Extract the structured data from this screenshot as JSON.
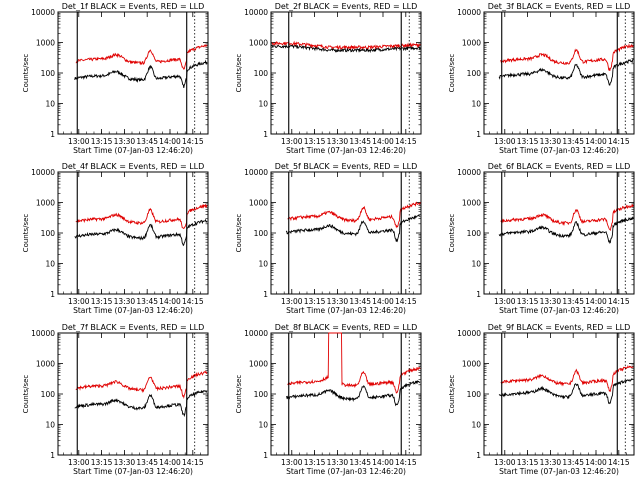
{
  "figure": {
    "x_axis_title": "Start Time (07-Jan-03 12:46:20)",
    "y_axis_title": "Counts/sec",
    "time_tick_labels": [
      "13:00",
      "13:15",
      "13:30",
      "13:45",
      "14:00",
      "14:15"
    ],
    "y_tick_labels": [
      "1",
      "10",
      "100",
      "1000",
      "10000"
    ],
    "series_colors": {
      "events": "#000000",
      "lld": "#e00000"
    }
  },
  "chart_data": [
    {
      "title": "Det_1f BLACK = Events, RED = LLD",
      "type": "line",
      "shape": "A",
      "y_scale": "log",
      "ylim": [
        1,
        10000
      ],
      "xlim": [
        "12:46:20",
        "14:25"
      ],
      "markers": [
        "12:59",
        "14:11"
      ],
      "series": [
        {
          "name": "Events",
          "color": "#000000",
          "base": 70
        },
        {
          "name": "LLD",
          "color": "#e00000",
          "base": 250
        }
      ]
    },
    {
      "title": "Det_2f BLACK = Events, RED = LLD",
      "type": "line",
      "shape": "B",
      "y_scale": "log",
      "ylim": [
        1,
        10000
      ],
      "xlim": [
        "12:46:20",
        "14:25"
      ],
      "markers": [
        "12:58",
        "14:12"
      ],
      "series": [
        {
          "name": "Events",
          "color": "#000000",
          "base": 560
        },
        {
          "name": "LLD",
          "color": "#e00000",
          "base": 700
        }
      ]
    },
    {
      "title": "Det_3f BLACK = Events, RED = LLD",
      "type": "line",
      "shape": "A",
      "y_scale": "log",
      "ylim": [
        1,
        10000
      ],
      "xlim": [
        "12:46:20",
        "14:25"
      ],
      "markers": [
        "12:58",
        "14:14"
      ],
      "series": [
        {
          "name": "Events",
          "color": "#000000",
          "base": 80
        },
        {
          "name": "LLD",
          "color": "#e00000",
          "base": 250
        }
      ]
    },
    {
      "title": "Det_4f BLACK = Events, RED = LLD",
      "type": "line",
      "shape": "A",
      "y_scale": "log",
      "ylim": [
        1,
        10000
      ],
      "xlim": [
        "12:46:20",
        "14:25"
      ],
      "markers": [
        "12:59",
        "14:11"
      ],
      "series": [
        {
          "name": "Events",
          "color": "#000000",
          "base": 80
        },
        {
          "name": "LLD",
          "color": "#e00000",
          "base": 250
        }
      ]
    },
    {
      "title": "Det_5f BLACK = Events, RED = LLD",
      "type": "line",
      "shape": "A",
      "y_scale": "log",
      "ylim": [
        1,
        10000
      ],
      "xlim": [
        "12:46:20",
        "14:25"
      ],
      "markers": [
        "12:58",
        "14:12"
      ],
      "series": [
        {
          "name": "Events",
          "color": "#000000",
          "base": 110
        },
        {
          "name": "LLD",
          "color": "#e00000",
          "base": 300
        }
      ]
    },
    {
      "title": "Det_6f BLACK = Events, RED = LLD",
      "type": "line",
      "shape": "A",
      "y_scale": "log",
      "ylim": [
        1,
        10000
      ],
      "xlim": [
        "12:46:20",
        "14:25"
      ],
      "markers": [
        "12:58",
        "14:14"
      ],
      "series": [
        {
          "name": "Events",
          "color": "#000000",
          "base": 95
        },
        {
          "name": "LLD",
          "color": "#e00000",
          "base": 250
        }
      ]
    },
    {
      "title": "Det_7f BLACK = Events, RED = LLD",
      "type": "line",
      "shape": "A",
      "y_scale": "log",
      "ylim": [
        1,
        10000
      ],
      "xlim": [
        "12:46:20",
        "14:25"
      ],
      "markers": [
        "12:59",
        "14:11"
      ],
      "series": [
        {
          "name": "Events",
          "color": "#000000",
          "base": 40
        },
        {
          "name": "LLD",
          "color": "#e00000",
          "base": 160
        }
      ]
    },
    {
      "title": "Det_8f BLACK = Events, RED = LLD",
      "type": "line",
      "shape": "C",
      "y_scale": "log",
      "ylim": [
        1,
        10000
      ],
      "xlim": [
        "12:46:20",
        "14:25"
      ],
      "markers": [
        "12:58",
        "14:12"
      ],
      "spike": {
        "start": "13:24",
        "end": "13:33",
        "value": 10000
      },
      "series": [
        {
          "name": "Events",
          "color": "#000000",
          "base": 80
        },
        {
          "name": "LLD",
          "color": "#e00000",
          "base": 220
        }
      ]
    },
    {
      "title": "Det_9f BLACK = Events, RED = LLD",
      "type": "line",
      "shape": "A",
      "y_scale": "log",
      "ylim": [
        1,
        10000
      ],
      "xlim": [
        "12:46:20",
        "14:25"
      ],
      "markers": [
        "12:58",
        "14:14"
      ],
      "series": [
        {
          "name": "Events",
          "color": "#000000",
          "base": 95
        },
        {
          "name": "LLD",
          "color": "#e00000",
          "base": 250
        }
      ]
    }
  ]
}
